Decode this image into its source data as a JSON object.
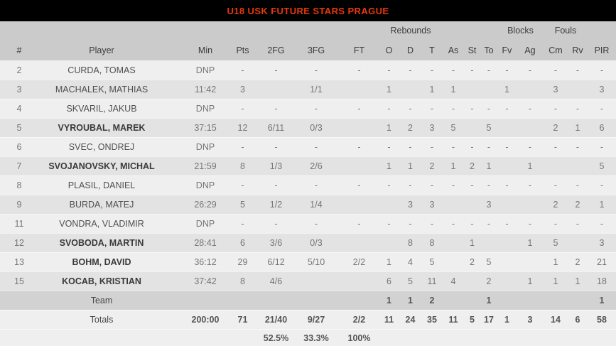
{
  "title": "U18 USK FUTURE STARS PRAGUE",
  "header": {
    "groups": [
      {
        "label": "Rebounds"
      },
      {
        "label": "Blocks"
      },
      {
        "label": "Fouls"
      }
    ],
    "columns": [
      "#",
      "Player",
      "Min",
      "Pts",
      "2FG",
      "3FG",
      "FT",
      "O",
      "D",
      "T",
      "As",
      "St",
      "To",
      "Fv",
      "Ag",
      "Cm",
      "Rv",
      "PIR"
    ]
  },
  "rows": [
    {
      "kind": "player",
      "starter": false,
      "num": "2",
      "name": "CURDA, TOMAS",
      "min": "DNP",
      "pts": "-",
      "p2": "-",
      "p3": "-",
      "ft": "-",
      "o": "-",
      "d": "-",
      "t": "-",
      "as": "-",
      "st": "-",
      "to": "-",
      "fv": "-",
      "ag": "-",
      "cm": "-",
      "rv": "-",
      "pir": "-"
    },
    {
      "kind": "player",
      "starter": false,
      "num": "3",
      "name": "MACHALEK, MATHIAS",
      "min": "11:42",
      "pts": "3",
      "p2": "",
      "p3": "1/1",
      "ft": "",
      "o": "1",
      "d": "",
      "t": "1",
      "as": "1",
      "st": "",
      "to": "",
      "fv": "1",
      "ag": "",
      "cm": "3",
      "rv": "",
      "pir": "3"
    },
    {
      "kind": "player",
      "starter": false,
      "num": "4",
      "name": "SKVARIL, JAKUB",
      "min": "DNP",
      "pts": "-",
      "p2": "-",
      "p3": "-",
      "ft": "-",
      "o": "-",
      "d": "-",
      "t": "-",
      "as": "-",
      "st": "-",
      "to": "-",
      "fv": "-",
      "ag": "-",
      "cm": "-",
      "rv": "-",
      "pir": "-"
    },
    {
      "kind": "player",
      "starter": true,
      "num": "5",
      "name": "VYROUBAL, MAREK",
      "min": "37:15",
      "pts": "12",
      "p2": "6/11",
      "p3": "0/3",
      "ft": "",
      "o": "1",
      "d": "2",
      "t": "3",
      "as": "5",
      "st": "",
      "to": "5",
      "fv": "",
      "ag": "",
      "cm": "2",
      "rv": "1",
      "pir": "6"
    },
    {
      "kind": "player",
      "starter": false,
      "num": "6",
      "name": "SVEC, ONDREJ",
      "min": "DNP",
      "pts": "-",
      "p2": "-",
      "p3": "-",
      "ft": "-",
      "o": "-",
      "d": "-",
      "t": "-",
      "as": "-",
      "st": "-",
      "to": "-",
      "fv": "-",
      "ag": "-",
      "cm": "-",
      "rv": "-",
      "pir": "-"
    },
    {
      "kind": "player",
      "starter": true,
      "num": "7",
      "name": "SVOJANOVSKY, MICHAL",
      "min": "21:59",
      "pts": "8",
      "p2": "1/3",
      "p3": "2/6",
      "ft": "",
      "o": "1",
      "d": "1",
      "t": "2",
      "as": "1",
      "st": "2",
      "to": "1",
      "fv": "",
      "ag": "1",
      "cm": "",
      "rv": "",
      "pir": "5"
    },
    {
      "kind": "player",
      "starter": false,
      "num": "8",
      "name": "PLASIL, DANIEL",
      "min": "DNP",
      "pts": "-",
      "p2": "-",
      "p3": "-",
      "ft": "-",
      "o": "-",
      "d": "-",
      "t": "-",
      "as": "-",
      "st": "-",
      "to": "-",
      "fv": "-",
      "ag": "-",
      "cm": "-",
      "rv": "-",
      "pir": "-"
    },
    {
      "kind": "player",
      "starter": false,
      "num": "9",
      "name": "BURDA, MATEJ",
      "min": "26:29",
      "pts": "5",
      "p2": "1/2",
      "p3": "1/4",
      "ft": "",
      "o": "",
      "d": "3",
      "t": "3",
      "as": "",
      "st": "",
      "to": "3",
      "fv": "",
      "ag": "",
      "cm": "2",
      "rv": "2",
      "pir": "1"
    },
    {
      "kind": "player",
      "starter": false,
      "num": "11",
      "name": "VONDRA, VLADIMIR",
      "min": "DNP",
      "pts": "-",
      "p2": "-",
      "p3": "-",
      "ft": "-",
      "o": "-",
      "d": "-",
      "t": "-",
      "as": "-",
      "st": "-",
      "to": "-",
      "fv": "-",
      "ag": "-",
      "cm": "-",
      "rv": "-",
      "pir": "-"
    },
    {
      "kind": "player",
      "starter": true,
      "num": "12",
      "name": "SVOBODA, MARTIN",
      "min": "28:41",
      "pts": "6",
      "p2": "3/6",
      "p3": "0/3",
      "ft": "",
      "o": "",
      "d": "8",
      "t": "8",
      "as": "",
      "st": "1",
      "to": "",
      "fv": "",
      "ag": "1",
      "cm": "5",
      "rv": "",
      "pir": "3"
    },
    {
      "kind": "player",
      "starter": true,
      "num": "13",
      "name": "BOHM, DAVID",
      "min": "36:12",
      "pts": "29",
      "p2": "6/12",
      "p3": "5/10",
      "ft": "2/2",
      "o": "1",
      "d": "4",
      "t": "5",
      "as": "",
      "st": "2",
      "to": "5",
      "fv": "",
      "ag": "",
      "cm": "1",
      "rv": "2",
      "pir": "21"
    },
    {
      "kind": "player",
      "starter": true,
      "num": "15",
      "name": "KOCAB, KRISTIAN",
      "min": "37:42",
      "pts": "8",
      "p2": "4/6",
      "p3": "",
      "ft": "",
      "o": "6",
      "d": "5",
      "t": "11",
      "as": "4",
      "st": "",
      "to": "2",
      "fv": "",
      "ag": "1",
      "cm": "1",
      "rv": "1",
      "pir": "18"
    },
    {
      "kind": "team",
      "starter": false,
      "num": "",
      "name": "Team",
      "min": "",
      "pts": "",
      "p2": "",
      "p3": "",
      "ft": "",
      "o": "1",
      "d": "1",
      "t": "2",
      "as": "",
      "st": "",
      "to": "1",
      "fv": "",
      "ag": "",
      "cm": "",
      "rv": "",
      "pir": "1"
    },
    {
      "kind": "totals",
      "starter": false,
      "num": "",
      "name": "Totals",
      "min": "200:00",
      "pts": "71",
      "p2": "21/40",
      "p3": "9/27",
      "ft": "2/2",
      "o": "11",
      "d": "24",
      "t": "35",
      "as": "11",
      "st": "5",
      "to": "17",
      "fv": "1",
      "ag": "3",
      "cm": "14",
      "rv": "6",
      "pir": "58"
    },
    {
      "kind": "pct",
      "starter": false,
      "num": "",
      "name": "",
      "min": "",
      "pts": "",
      "p2": "52.5%",
      "p3": "33.3%",
      "ft": "100%",
      "o": "",
      "d": "",
      "t": "",
      "as": "",
      "st": "",
      "to": "",
      "fv": "",
      "ag": "",
      "cm": "",
      "rv": "",
      "pir": ""
    }
  ]
}
